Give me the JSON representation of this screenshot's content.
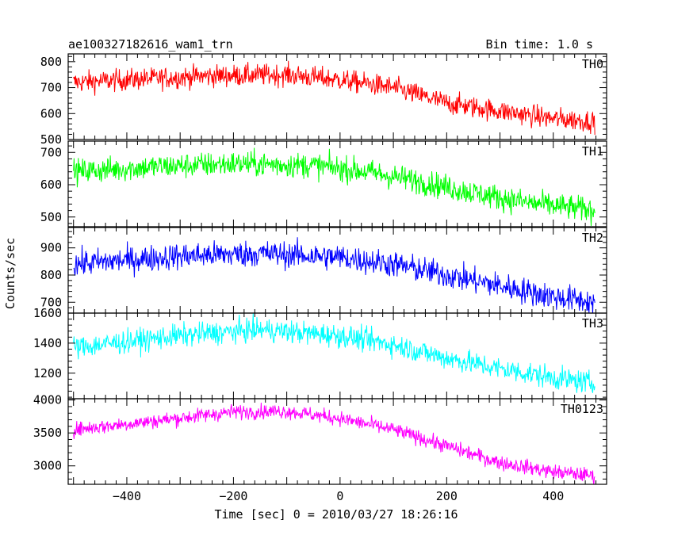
{
  "header": {
    "title": "ae100327182616_wam1_trn",
    "bin_time": "Bin time: 1.0 s"
  },
  "chart_data": {
    "type": "line",
    "title": "ae100327182616_wam1_trn",
    "subtitle": "Bin time: 1.0 s",
    "xlabel": "Time [sec] 0 = 2010/03/27 18:26:16",
    "ylabel": "Counts/sec",
    "xlim": [
      -510,
      500
    ],
    "xticks": [
      -400,
      -200,
      0,
      200,
      400
    ],
    "xtick_labels": [
      "−400",
      "−200",
      "0",
      "200",
      "400"
    ],
    "x_range": [
      -500,
      478
    ],
    "grid": false,
    "panels": [
      {
        "name": "TH0",
        "color": "#ff0000",
        "ylim": [
          500,
          830
        ],
        "yticks": [
          500,
          600,
          700,
          800
        ],
        "trend": [
          [
            -500,
            720
          ],
          [
            -250,
            745
          ],
          [
            -100,
            750
          ],
          [
            0,
            730
          ],
          [
            100,
            700
          ],
          [
            200,
            640
          ],
          [
            300,
            610
          ],
          [
            400,
            580
          ],
          [
            478,
            570
          ]
        ],
        "noise": 30
      },
      {
        "name": "TH1",
        "color": "#00ff00",
        "ylim": [
          470,
          735
        ],
        "yticks": [
          500,
          600,
          700
        ],
        "trend": [
          [
            -500,
            640
          ],
          [
            -350,
            655
          ],
          [
            -200,
            665
          ],
          [
            -50,
            660
          ],
          [
            50,
            640
          ],
          [
            150,
            610
          ],
          [
            250,
            575
          ],
          [
            350,
            545
          ],
          [
            478,
            520
          ]
        ],
        "noise": 28
      },
      {
        "name": "TH2",
        "color": "#0000ff",
        "ylim": [
          660,
          975
        ],
        "yticks": [
          700,
          800,
          900
        ],
        "trend": [
          [
            -500,
            840
          ],
          [
            -300,
            870
          ],
          [
            -150,
            880
          ],
          [
            0,
            865
          ],
          [
            100,
            840
          ],
          [
            200,
            800
          ],
          [
            300,
            760
          ],
          [
            400,
            720
          ],
          [
            478,
            700
          ]
        ],
        "noise": 35
      },
      {
        "name": "TH3",
        "color": "#00ffff",
        "ylim": [
          1030,
          1600
        ],
        "yticks": [
          1200,
          1400,
          1600
        ],
        "trend": [
          [
            -500,
            1370
          ],
          [
            -300,
            1450
          ],
          [
            -150,
            1490
          ],
          [
            0,
            1450
          ],
          [
            100,
            1390
          ],
          [
            200,
            1300
          ],
          [
            300,
            1230
          ],
          [
            400,
            1170
          ],
          [
            478,
            1130
          ]
        ],
        "noise": 55
      },
      {
        "name": "TH0123",
        "color": "#ff00ff",
        "ylim": [
          2720,
          4020
        ],
        "yticks": [
          3000,
          3500,
          4000
        ],
        "trend": [
          [
            -500,
            3550
          ],
          [
            -350,
            3680
          ],
          [
            -200,
            3820
          ],
          [
            -100,
            3830
          ],
          [
            0,
            3720
          ],
          [
            100,
            3550
          ],
          [
            200,
            3300
          ],
          [
            300,
            3050
          ],
          [
            400,
            2910
          ],
          [
            478,
            2850
          ]
        ],
        "noise": 80
      }
    ]
  }
}
